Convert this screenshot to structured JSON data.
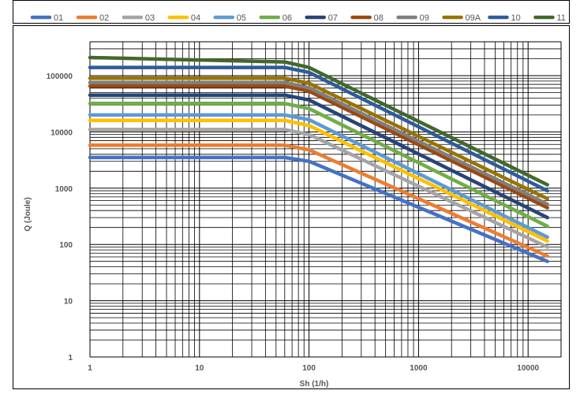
{
  "chart_data": {
    "type": "line",
    "title": "",
    "xlabel": "Sh (1/h)",
    "ylabel": "Q (Joule)",
    "x_scale": "log",
    "y_scale": "log",
    "xlim": [
      1,
      20000
    ],
    "ylim": [
      1,
      400000
    ],
    "grid": true,
    "legend_position": "top",
    "x_ticks": [
      "1",
      "10",
      "100",
      "1000",
      "10000"
    ],
    "y_ticks": [
      "1",
      "10",
      "100",
      "1000",
      "10000",
      "100000"
    ],
    "series": [
      {
        "name": "01",
        "color": "#4472C4",
        "values": [
          [
            1,
            3500
          ],
          [
            60,
            3500
          ],
          [
            100,
            3000
          ],
          [
            15000,
            50
          ]
        ]
      },
      {
        "name": "02",
        "color": "#ED7D31",
        "values": [
          [
            1,
            5800
          ],
          [
            60,
            5800
          ],
          [
            100,
            4800
          ],
          [
            15000,
            62
          ]
        ]
      },
      {
        "name": "03",
        "color": "#A5A5A5",
        "values": [
          [
            1,
            11000
          ],
          [
            60,
            11000
          ],
          [
            100,
            9000
          ],
          [
            15000,
            90
          ]
        ]
      },
      {
        "name": "04",
        "color": "#FFC000",
        "values": [
          [
            1,
            16000
          ],
          [
            60,
            16000
          ],
          [
            100,
            13000
          ],
          [
            15000,
            115
          ]
        ]
      },
      {
        "name": "05",
        "color": "#5B9BD5",
        "values": [
          [
            1,
            20000
          ],
          [
            60,
            20000
          ],
          [
            100,
            16500
          ],
          [
            15000,
            135
          ]
        ]
      },
      {
        "name": "06",
        "color": "#70AD47",
        "values": [
          [
            1,
            32000
          ],
          [
            60,
            32000
          ],
          [
            100,
            26000
          ],
          [
            15000,
            210
          ]
        ]
      },
      {
        "name": "07",
        "color": "#264478",
        "values": [
          [
            1,
            45000
          ],
          [
            60,
            45000
          ],
          [
            100,
            37000
          ],
          [
            15000,
            300
          ]
        ]
      },
      {
        "name": "08",
        "color": "#9E480E",
        "values": [
          [
            1,
            65000
          ],
          [
            60,
            65000
          ],
          [
            100,
            53000
          ],
          [
            15000,
            450
          ]
        ]
      },
      {
        "name": "09",
        "color": "#7F7F7F",
        "values": [
          [
            1,
            75000
          ],
          [
            60,
            75000
          ],
          [
            100,
            61000
          ],
          [
            15000,
            520
          ]
        ]
      },
      {
        "name": "09A",
        "color": "#997300",
        "values": [
          [
            1,
            90000
          ],
          [
            60,
            90000
          ],
          [
            100,
            73000
          ],
          [
            15000,
            650
          ]
        ]
      },
      {
        "name": "10",
        "color": "#2E5C9A",
        "values": [
          [
            1,
            140000
          ],
          [
            60,
            140000
          ],
          [
            100,
            114000
          ],
          [
            15000,
            900
          ]
        ]
      },
      {
        "name": "11",
        "color": "#43682B",
        "values": [
          [
            1,
            210000
          ],
          [
            60,
            175000
          ],
          [
            100,
            140000
          ],
          [
            15000,
            1150
          ]
        ]
      }
    ]
  }
}
